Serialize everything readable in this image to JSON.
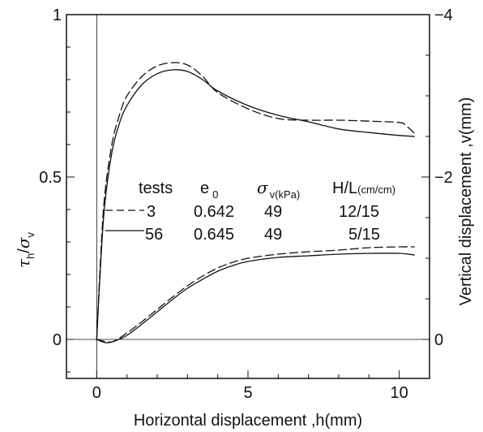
{
  "chart_data": {
    "type": "line",
    "xlabel": "Horizontal displacement ,h(mm)",
    "ylabel_left": {
      "tau": "τ",
      "h": "h",
      "slash": "/",
      "sigma": "σ",
      "v": "v"
    },
    "ylabel_right": "Vertical displacement ,v(mm)",
    "xlim": [
      -1.0,
      11.0
    ],
    "ylim_left": [
      -0.12,
      1.0
    ],
    "ylim_right": [
      0.48,
      -4.0
    ],
    "x_ticks": [
      {
        "value": 0,
        "label": "0"
      },
      {
        "value": 5,
        "label": "5"
      },
      {
        "value": 10,
        "label": "10"
      }
    ],
    "y_left_ticks": [
      {
        "value": 0,
        "label": "0"
      },
      {
        "value": 0.5,
        "label": "0.5"
      },
      {
        "value": 1,
        "label": "1"
      }
    ],
    "y_right_ticks": [
      {
        "value": 0,
        "label": "0"
      },
      {
        "value": -2,
        "label": "−2"
      },
      {
        "value": -4,
        "label": "−4"
      }
    ],
    "legend": {
      "header": {
        "tests": "tests",
        "e": "e",
        "e_sub": "0",
        "sigma": "σ",
        "sigma_sub": "v(kPa)",
        "hl": "H/L",
        "hl_sub": "(cm/cm)"
      },
      "rows": [
        {
          "tests": "3",
          "e0": "0.642",
          "sigma_v": "49",
          "hl": "12/15",
          "style": "dashed"
        },
        {
          "tests": "56",
          "e0": "0.645",
          "sigma_v": "49",
          "hl": "5/15",
          "style": "solid"
        }
      ]
    },
    "series": [
      {
        "test": "3",
        "style": "dashed",
        "quantity": "τh/σv",
        "axis": "left",
        "x": [
          0,
          0.1,
          0.25,
          0.5,
          0.75,
          1.0,
          1.5,
          2.0,
          2.5,
          3.0,
          3.5,
          4.0,
          5.0,
          6.0,
          7.0,
          8.0,
          9.0,
          10.0,
          10.2,
          10.5
        ],
        "y": [
          0,
          0.2,
          0.43,
          0.6,
          0.69,
          0.75,
          0.81,
          0.842,
          0.852,
          0.845,
          0.81,
          0.76,
          0.71,
          0.68,
          0.675,
          0.675,
          0.672,
          0.668,
          0.66,
          0.635
        ]
      },
      {
        "test": "56",
        "style": "solid",
        "quantity": "τh/σv",
        "axis": "left",
        "x": [
          0,
          0.1,
          0.25,
          0.5,
          0.75,
          1.0,
          1.5,
          2.0,
          2.5,
          3.0,
          3.5,
          4.0,
          5.0,
          6.0,
          7.0,
          8.0,
          9.0,
          10.0,
          10.5
        ],
        "y": [
          0,
          0.18,
          0.4,
          0.575,
          0.665,
          0.72,
          0.785,
          0.818,
          0.83,
          0.825,
          0.8,
          0.765,
          0.72,
          0.69,
          0.67,
          0.648,
          0.637,
          0.628,
          0.625
        ]
      },
      {
        "test": "3",
        "style": "dashed",
        "quantity": "v (mm)",
        "axis": "right",
        "x": [
          0,
          0.5,
          1.0,
          1.5,
          2.0,
          2.5,
          3.0,
          3.5,
          4.0,
          4.5,
          5.0,
          6.0,
          7.0,
          8.0,
          9.0,
          10.0,
          10.5
        ],
        "y": [
          0,
          0.03,
          -0.08,
          -0.22,
          -0.37,
          -0.52,
          -0.66,
          -0.78,
          -0.88,
          -0.95,
          -1.0,
          -1.05,
          -1.08,
          -1.1,
          -1.13,
          -1.14,
          -1.14
        ]
      },
      {
        "test": "56",
        "style": "solid",
        "quantity": "v (mm)",
        "axis": "right",
        "x": [
          0,
          0.3,
          0.6,
          1.0,
          1.5,
          2.0,
          2.5,
          3.0,
          3.5,
          4.0,
          4.5,
          5.0,
          6.0,
          7.0,
          8.0,
          9.0,
          10.0,
          10.5
        ],
        "y": [
          0,
          0.04,
          0.02,
          -0.05,
          -0.19,
          -0.34,
          -0.49,
          -0.63,
          -0.74,
          -0.84,
          -0.91,
          -0.96,
          -1.01,
          -1.03,
          -1.05,
          -1.06,
          -1.06,
          -1.04
        ]
      }
    ]
  }
}
